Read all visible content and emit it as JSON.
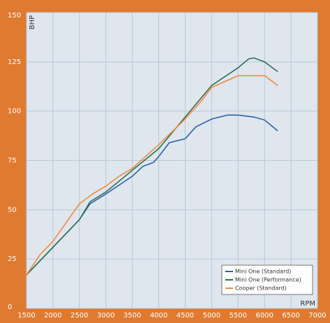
{
  "chart_data": {
    "type": "line",
    "xlabel": "RPM",
    "ylabel": "BHP",
    "xlim": [
      1500,
      7000
    ],
    "xticks": [
      1500,
      2000,
      2500,
      3000,
      3500,
      4000,
      4500,
      5000,
      5500,
      6000,
      6500,
      7000
    ],
    "ylim": [
      0,
      150
    ],
    "yticks": [
      0,
      25,
      50,
      75,
      100,
      125,
      150
    ],
    "grid": true,
    "legend": "lower right",
    "series": [
      {
        "name": "Mini One (Standard)",
        "color": "#2c62a8",
        "x": [
          1500,
          2000,
          2500,
          2700,
          3000,
          3500,
          3700,
          3900,
          4000,
          4200,
          4500,
          4700,
          5000,
          5300,
          5500,
          5800,
          6000,
          6250
        ],
        "values": [
          17,
          31,
          45,
          53,
          58,
          67,
          72,
          74,
          77,
          84,
          86,
          92,
          96,
          98,
          98,
          97,
          95.5,
          90
        ]
      },
      {
        "name": "Mini One (Performance)",
        "color": "#2f6e52",
        "x": [
          1500,
          2000,
          2500,
          2700,
          3000,
          3500,
          4000,
          4500,
          5000,
          5500,
          5700,
          5800,
          6000,
          6250
        ],
        "values": [
          17,
          31,
          45,
          54,
          59,
          70,
          81,
          97,
          113,
          122,
          126.5,
          127,
          125,
          120
        ]
      },
      {
        "name": "Cooper (Standard)",
        "color": "#f08a3c",
        "x": [
          1500,
          1750,
          2000,
          2500,
          2750,
          3000,
          3250,
          3500,
          4000,
          4500,
          4800,
          5000,
          5250,
          5500,
          5750,
          6000,
          6250
        ],
        "values": [
          17,
          27,
          34,
          53,
          58,
          62,
          67,
          71,
          83,
          96,
          105,
          112,
          115,
          118,
          118,
          118,
          113
        ]
      }
    ]
  }
}
